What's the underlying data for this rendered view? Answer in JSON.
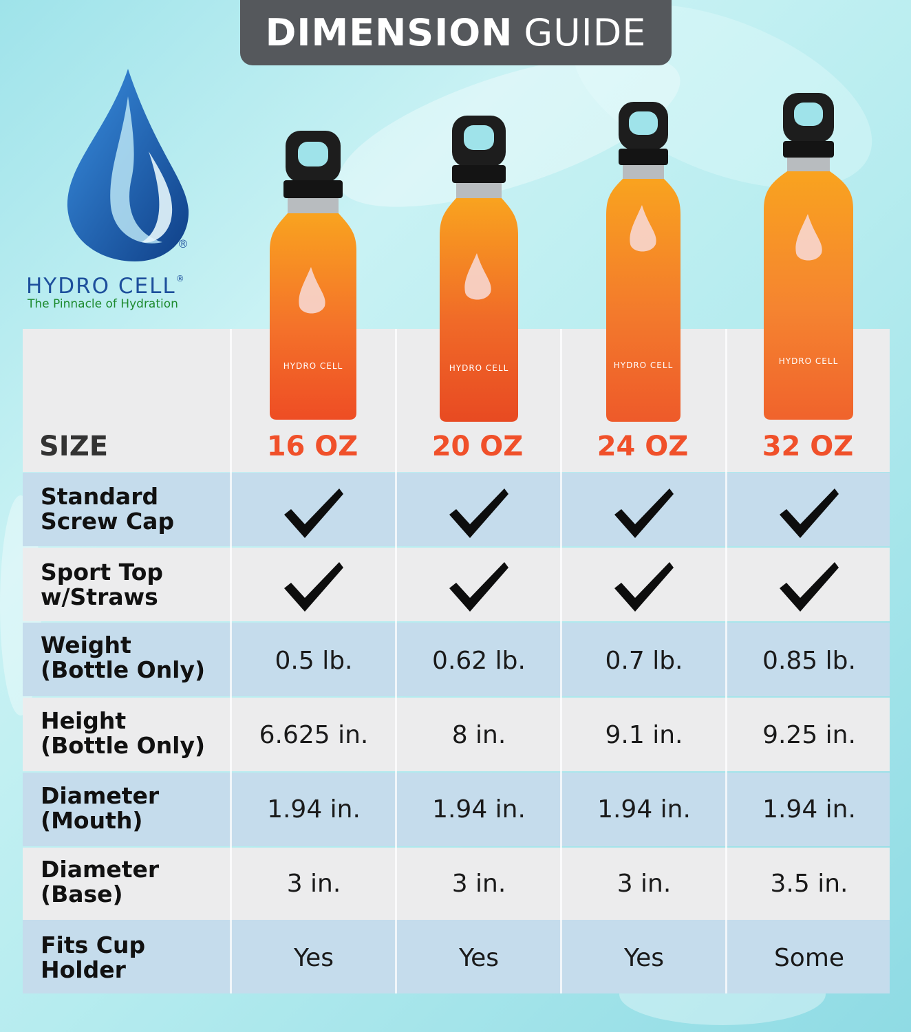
{
  "title": {
    "bold": "DIMENSION",
    "light": "GUIDE"
  },
  "brand": {
    "name": "HYDRO CELL",
    "reg": "®",
    "tagline": "The Pinnacle of Hydration",
    "bottle_label": "HYDRO CELL"
  },
  "colors": {
    "accent": "#f0502a",
    "header_tab": "#55585c",
    "row_blue": "#c5dcec",
    "row_grey": "#ececed"
  },
  "table": {
    "size_label": "SIZE",
    "sizes": [
      "16 OZ",
      "20 OZ",
      "24 OZ",
      "32 OZ"
    ],
    "rows": [
      {
        "label_1": "Standard",
        "label_2": "Screw Cap",
        "values": [
          "check-icon",
          "check-icon",
          "check-icon",
          "check-icon"
        ]
      },
      {
        "label_1": "Sport Top",
        "label_2": "w/Straws",
        "values": [
          "check-icon",
          "check-icon",
          "check-icon",
          "check-icon"
        ]
      },
      {
        "label_1": "Weight",
        "label_2": "(Bottle Only)",
        "values": [
          "0.5 lb.",
          "0.62 lb.",
          "0.7 lb.",
          "0.85 lb."
        ]
      },
      {
        "label_1": "Height",
        "label_2": "(Bottle Only)",
        "values": [
          "6.625 in.",
          "8 in.",
          "9.1 in.",
          "9.25 in."
        ]
      },
      {
        "label_1": "Diameter",
        "label_2": "(Mouth)",
        "values": [
          "1.94 in.",
          "1.94 in.",
          "1.94 in.",
          "1.94 in."
        ]
      },
      {
        "label_1": "Diameter",
        "label_2": "(Base)",
        "values": [
          "3 in.",
          "3 in.",
          "3 in.",
          "3.5 in."
        ]
      },
      {
        "label_1": "Fits Cup",
        "label_2": "Holder",
        "values": [
          "Yes",
          "Yes",
          "Yes",
          "Some"
        ]
      }
    ]
  }
}
